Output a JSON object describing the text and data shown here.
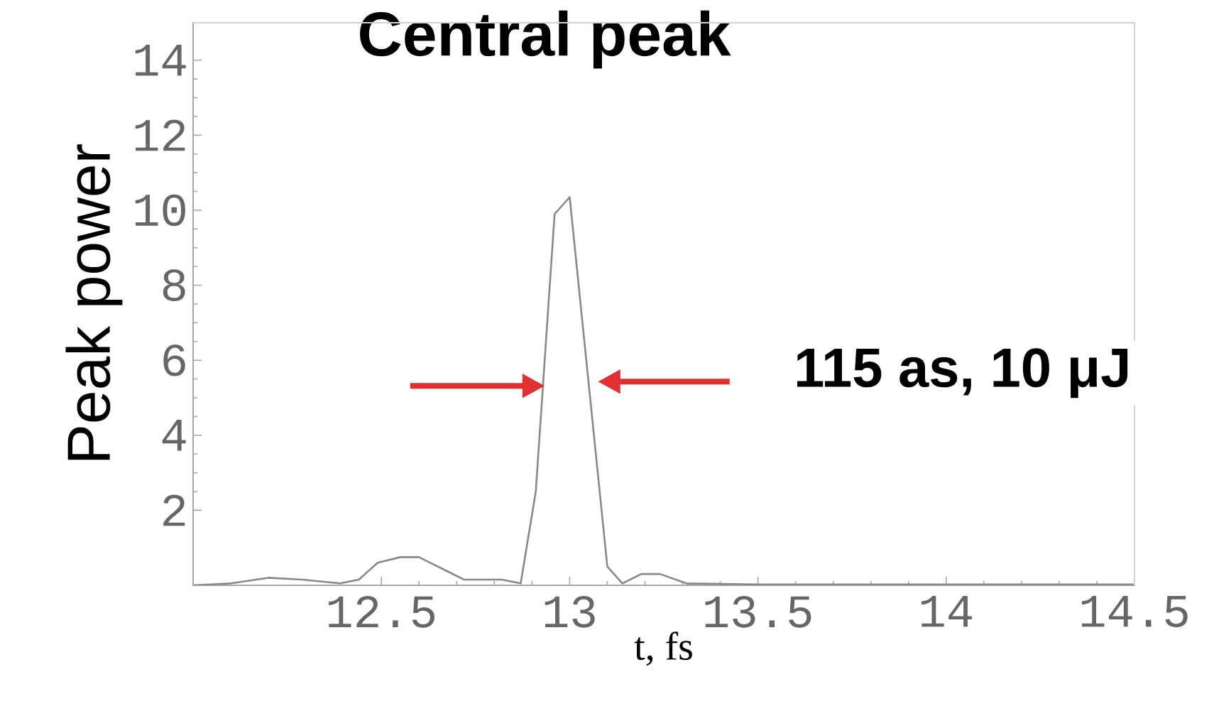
{
  "chart_data": {
    "type": "line",
    "title": "Central peak",
    "xlabel": "t, fs",
    "ylabel": "Peak power",
    "annotations": [
      "115 as, 10 μJ"
    ],
    "x": [
      12.0,
      12.1,
      12.2,
      12.29,
      12.39,
      12.44,
      12.49,
      12.55,
      12.6,
      12.63,
      12.68,
      12.72,
      12.82,
      12.87,
      12.91,
      12.96,
      13.0,
      13.1,
      13.14,
      13.19,
      13.24,
      13.31,
      13.5,
      14.0,
      14.5
    ],
    "series": [
      {
        "color": "#888888",
        "values": [
          0,
          0.05,
          0.2,
          0.15,
          0.05,
          0.15,
          0.6,
          0.75,
          0.75,
          0.6,
          0.35,
          0.15,
          0.15,
          0.05,
          2.5,
          9.9,
          10.35,
          0.5,
          0.05,
          0.3,
          0.3,
          0.05,
          0.02,
          0.02,
          0.02
        ]
      }
    ],
    "xlim": [
      12,
      14.5
    ],
    "ylim": [
      0,
      15
    ],
    "xticks": [
      12.5,
      13,
      13.5,
      14,
      14.5
    ],
    "yticks": [
      2,
      4,
      6,
      8,
      10,
      12,
      14
    ]
  }
}
